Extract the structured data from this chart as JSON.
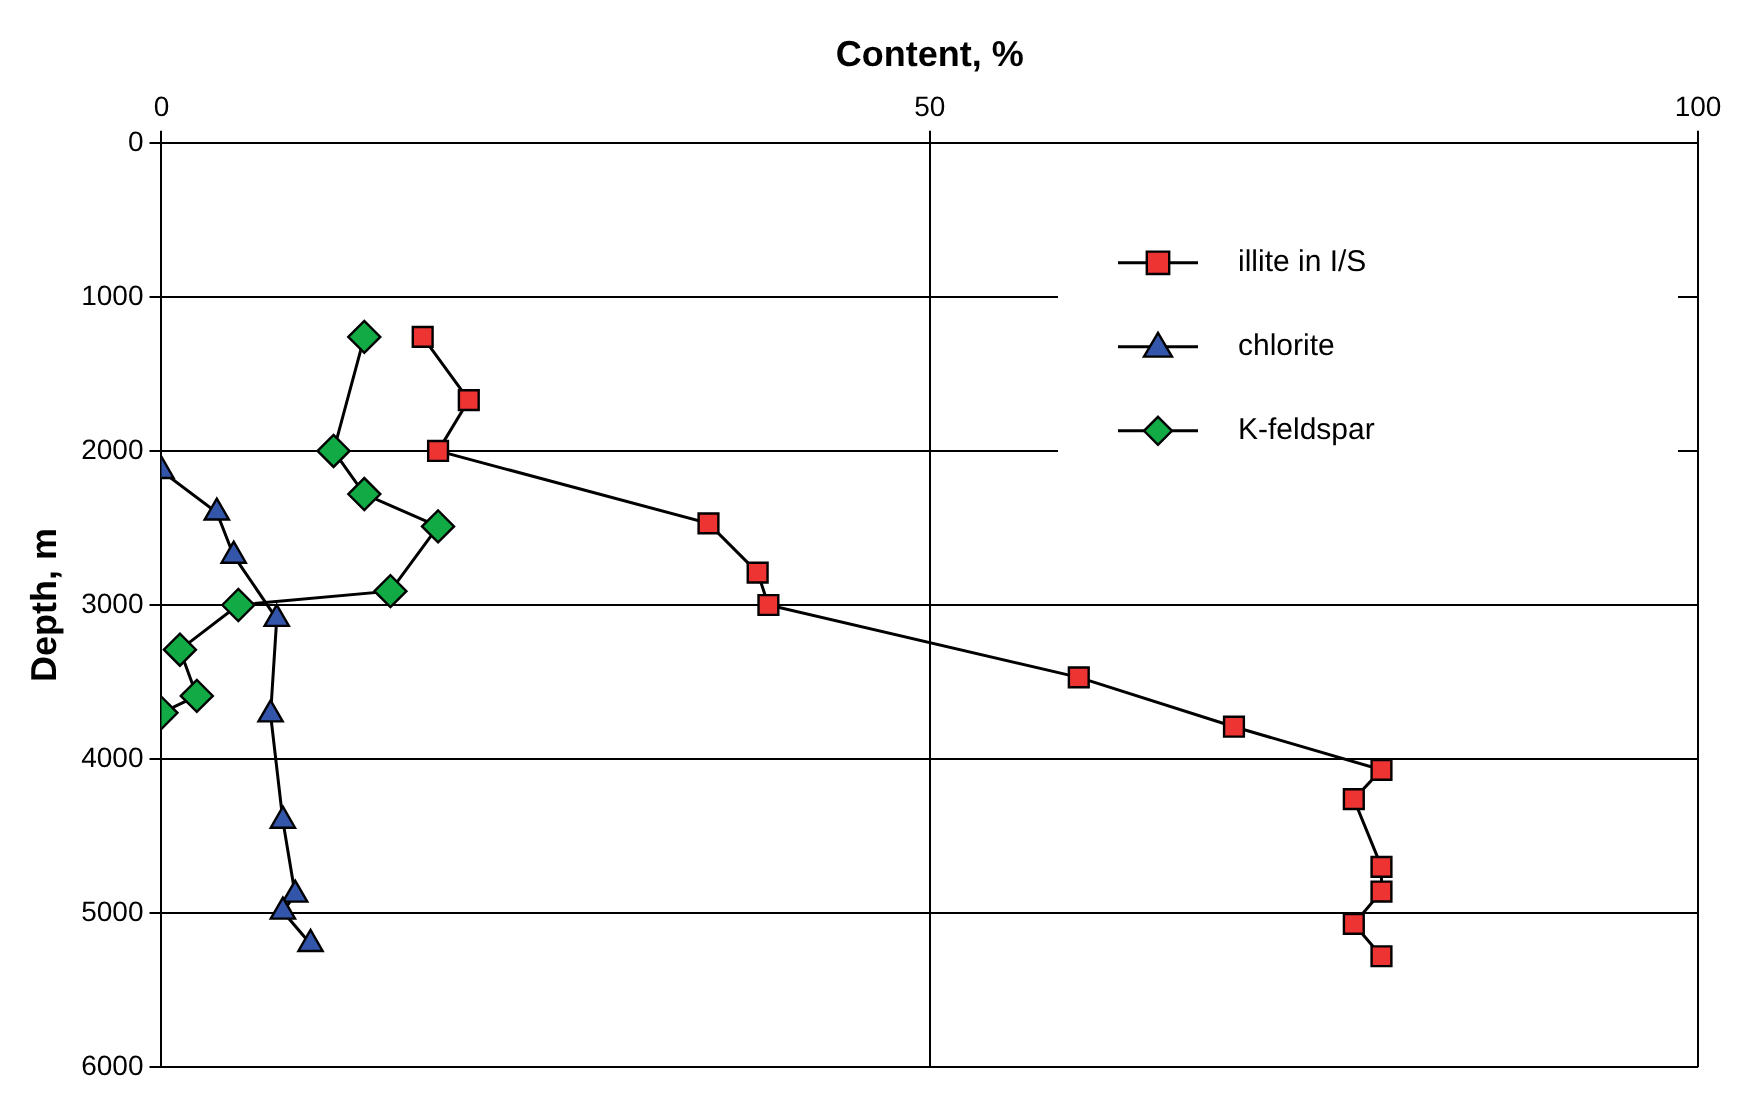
{
  "chart_data": {
    "type": "line",
    "xlabel": "Content, %",
    "ylabel": "Depth, m",
    "xlim": [
      0,
      100
    ],
    "xticks": [
      0,
      50,
      100
    ],
    "ylim": [
      6000,
      0
    ],
    "yticks": [
      0,
      1000,
      2000,
      3000,
      4000,
      5000,
      6000
    ],
    "grid": true,
    "legend": "top right",
    "line_style": "solid",
    "series": [
      {
        "name": "illite in I/S",
        "color": "#ee3333",
        "marker": "square",
        "x": [
          17,
          20,
          18,
          35.6,
          38.8,
          39.5,
          59.7,
          69.8,
          79.4,
          77.6,
          79.4,
          79.4,
          77.6,
          79.4
        ],
        "values": [
          1260,
          1670,
          2000,
          2470,
          2790,
          3000,
          3470,
          3790,
          4070,
          4260,
          4700,
          4860,
          5070,
          5280
        ]
      },
      {
        "name": "chlorite",
        "color": "#3355aa",
        "marker": "triangle",
        "x": [
          0,
          3.6,
          4.7,
          7.5,
          7.1,
          7.9,
          8.7,
          7.9,
          9.7
        ],
        "values": [
          2130,
          2400,
          2680,
          3090,
          3710,
          4400,
          4880,
          4990,
          5200
        ]
      },
      {
        "name": "K-feldspar",
        "color": "#11aa44",
        "marker": "diamond",
        "x": [
          13.2,
          11.2,
          13.2,
          18,
          14.9,
          5,
          1.2,
          2.3,
          0
        ],
        "values": [
          1260,
          2000,
          2280,
          2490,
          2910,
          3000,
          3290,
          3590,
          3700
        ]
      }
    ]
  }
}
